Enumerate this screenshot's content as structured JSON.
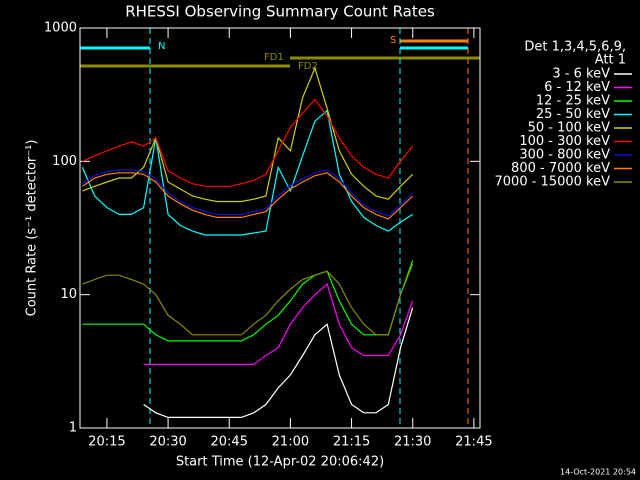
{
  "chart_data": {
    "type": "line",
    "title": "RHESSI Observing Summary Count Rates",
    "x_label": "Start Time (12-Apr-02 20:06:42)",
    "y_label": "Count Rate (s⁻¹ detector⁻¹)",
    "legend_title": [
      "Det 1,3,4,5,6,9,",
      "Att 1"
    ],
    "annotations": [
      "N",
      "S",
      "FD1",
      "FD2"
    ],
    "footer": "14-Oct-2021 20:54",
    "log_y": true,
    "xlim": [
      8.4,
      106.5
    ],
    "ylim": [
      1,
      1000
    ],
    "yticks": [
      1,
      10,
      100,
      1000
    ],
    "xticks": [
      {
        "value": 15,
        "label": "20:15"
      },
      {
        "value": 30,
        "label": "20:30"
      },
      {
        "value": 45,
        "label": "20:45"
      },
      {
        "value": 60,
        "label": "21:00"
      },
      {
        "value": 75,
        "label": "21:15"
      },
      {
        "value": 90,
        "label": "21:30"
      },
      {
        "value": 105,
        "label": "21:45"
      }
    ],
    "x": [
      9,
      12,
      15,
      18,
      21,
      24,
      27,
      30,
      33,
      36,
      39,
      42,
      45,
      48,
      51,
      54,
      57,
      60,
      63,
      66,
      69,
      72,
      75,
      78,
      81,
      84,
      87,
      90
    ],
    "series": [
      {
        "name": "3 - 6 keV",
        "color": "#ffffff",
        "values": [
          null,
          null,
          null,
          null,
          null,
          1.5,
          1.3,
          1.2,
          1.2,
          1.2,
          1.2,
          1.2,
          1.2,
          1.2,
          1.3,
          1.5,
          2,
          2.5,
          3.5,
          5,
          6,
          2.5,
          1.5,
          1.3,
          1.3,
          1.5,
          4,
          8
        ]
      },
      {
        "name": "6 - 12 keV",
        "color": "#ff00ff",
        "values": [
          null,
          null,
          null,
          null,
          null,
          3,
          3,
          3,
          3,
          3,
          3,
          3,
          3,
          3,
          3,
          3.5,
          4,
          6,
          8,
          10,
          12,
          6,
          4,
          3.5,
          3.5,
          3.5,
          5,
          9
        ]
      },
      {
        "name": "12 - 25 keV",
        "color": "#00ff00",
        "values": [
          6,
          6,
          6,
          6,
          6,
          6,
          5,
          4.5,
          4.5,
          4.5,
          4.5,
          4.5,
          4.5,
          4.5,
          5,
          6,
          7,
          9,
          12,
          14,
          15,
          9,
          6,
          5,
          5,
          5,
          10,
          18
        ]
      },
      {
        "name": "25 - 50 keV",
        "color": "#00ffff",
        "values": [
          90,
          55,
          45,
          40,
          40,
          45,
          150,
          40,
          33,
          30,
          28,
          28,
          28,
          28,
          29,
          30,
          90,
          60,
          110,
          200,
          240,
          80,
          50,
          38,
          33,
          30,
          35,
          40
        ]
      },
      {
        "name": "50 - 100 keV",
        "color": "#d0d000",
        "values": [
          60,
          65,
          70,
          75,
          75,
          90,
          150,
          70,
          62,
          55,
          52,
          50,
          50,
          50,
          52,
          55,
          150,
          120,
          300,
          500,
          250,
          120,
          80,
          65,
          55,
          52,
          65,
          80
        ]
      },
      {
        "name": "100 - 300 keV",
        "color": "#ff0000",
        "values": [
          100,
          110,
          120,
          130,
          140,
          130,
          150,
          85,
          75,
          68,
          65,
          65,
          65,
          68,
          72,
          80,
          120,
          180,
          230,
          290,
          220,
          150,
          110,
          90,
          80,
          75,
          100,
          130
        ]
      },
      {
        "name": "300 - 800 keV",
        "color": "#1010d0",
        "values": [
          68,
          78,
          84,
          86,
          86,
          84,
          74,
          58,
          50,
          45,
          42,
          40,
          40,
          40,
          42,
          44,
          55,
          66,
          74,
          82,
          86,
          74,
          58,
          47,
          42,
          39,
          47,
          58
        ]
      },
      {
        "name": "800 - 7000 keV",
        "color": "#ff8000",
        "values": [
          65,
          75,
          80,
          82,
          82,
          80,
          70,
          55,
          48,
          43,
          40,
          38,
          38,
          38,
          40,
          42,
          52,
          62,
          70,
          78,
          82,
          70,
          55,
          45,
          40,
          37,
          45,
          55
        ]
      },
      {
        "name": "7000 - 15000 keV",
        "color": "#8b8b00",
        "values": [
          12,
          13,
          14,
          14,
          13,
          12,
          10,
          7,
          6,
          5,
          5,
          5,
          5,
          5,
          6,
          7,
          9,
          11,
          13,
          14,
          15,
          12,
          8,
          6,
          5,
          5,
          10,
          17
        ]
      }
    ]
  }
}
